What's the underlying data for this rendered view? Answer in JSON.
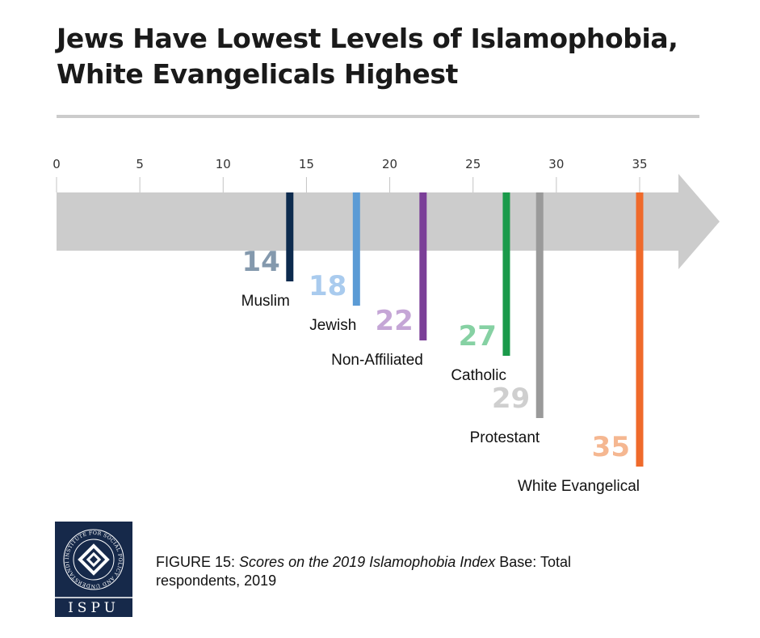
{
  "title_lines": [
    "Jews Have Lowest Levels of Islamophobia,",
    "White Evangelicals Highest"
  ],
  "chart_data": {
    "type": "bar",
    "title": "Jews Have Lowest Levels of Islamophobia, White Evangelicals Highest",
    "xlim": [
      0,
      35
    ],
    "ticks": [
      0,
      5,
      10,
      15,
      20,
      25,
      30,
      35
    ],
    "categories": [
      "Muslim",
      "Jewish",
      "Non-Affiliated",
      "Catholic",
      "Protestant",
      "White Evangelical"
    ],
    "values": [
      14,
      18,
      22,
      27,
      29,
      35
    ],
    "colors": [
      "#0d2b4e",
      "#5b9bd5",
      "#7b3f98",
      "#1a9a4a",
      "#9a9a9a",
      "#ef6a2b"
    ],
    "label_colors": [
      "#8499ad",
      "#a9cbee",
      "#c5a6d6",
      "#86d1a3",
      "#cfcfcf",
      "#f5b791"
    ],
    "axis_color": "#cccccc"
  },
  "caption": {
    "figure_label": "FIGURE 15",
    "separator": ": ",
    "italic_text": "Scores on the 2019 Islamophobia Index",
    "plain_text": " Base: Total respondents, 2019"
  },
  "logo": {
    "bottom_text": "ISPU",
    "ring_text": "INSTITUTE FOR SOCIAL POLICY AND UNDERSTANDING",
    "bg_color": "#16294a"
  }
}
